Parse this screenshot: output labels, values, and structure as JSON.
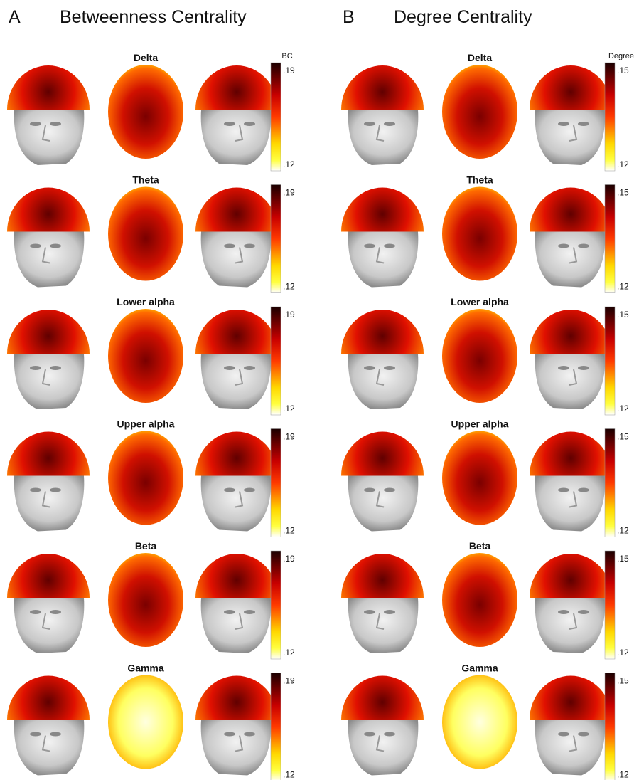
{
  "panels": [
    {
      "letter": "A",
      "title": "Betweenness Centrality",
      "colorbar": {
        "label": "BC",
        "max_label": ".19",
        "min_label": ".12"
      },
      "bands": [
        "Delta",
        "Theta",
        "Lower alpha",
        "Upper alpha",
        "Beta",
        "Gamma"
      ]
    },
    {
      "letter": "B",
      "title": "Degree Centrality",
      "colorbar": {
        "label": "Degree",
        "max_label": ".15",
        "min_label": ".12"
      },
      "bands": [
        "Delta",
        "Theta",
        "Lower alpha",
        "Upper alpha",
        "Beta",
        "Gamma"
      ]
    }
  ]
}
